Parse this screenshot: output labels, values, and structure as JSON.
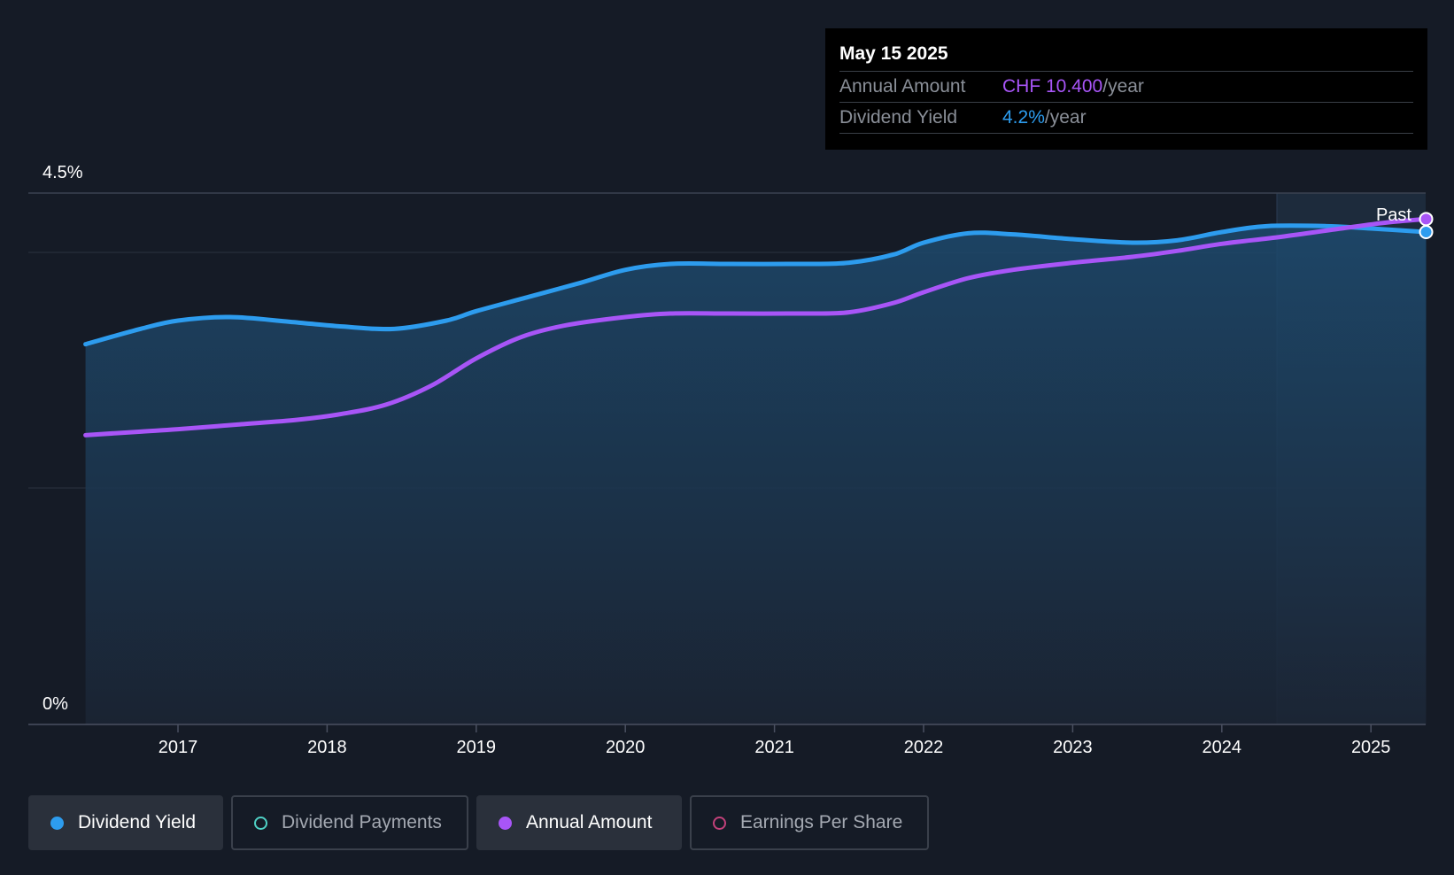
{
  "chart_data": {
    "type": "line",
    "x_tick_labels": [
      "2017",
      "2018",
      "2019",
      "2020",
      "2021",
      "2022",
      "2023",
      "2024",
      "2025"
    ],
    "y_tick_labels": [
      "4.5%",
      "0%"
    ],
    "ylim": [
      0,
      4.5
    ],
    "past_label": "Past",
    "series": [
      {
        "name": "Dividend Yield",
        "color": "#2d9cee",
        "points": [
          [
            2016.38,
            3.22
          ],
          [
            2016.75,
            3.35
          ],
          [
            2017.0,
            3.42
          ],
          [
            2017.35,
            3.45
          ],
          [
            2017.75,
            3.41
          ],
          [
            2018.1,
            3.37
          ],
          [
            2018.45,
            3.35
          ],
          [
            2018.8,
            3.42
          ],
          [
            2019.0,
            3.5
          ],
          [
            2019.35,
            3.62
          ],
          [
            2019.7,
            3.74
          ],
          [
            2020.0,
            3.85
          ],
          [
            2020.3,
            3.9
          ],
          [
            2020.7,
            3.9
          ],
          [
            2021.2,
            3.9
          ],
          [
            2021.5,
            3.91
          ],
          [
            2021.8,
            3.98
          ],
          [
            2022.0,
            4.08
          ],
          [
            2022.3,
            4.16
          ],
          [
            2022.6,
            4.15
          ],
          [
            2023.0,
            4.11
          ],
          [
            2023.4,
            4.08
          ],
          [
            2023.7,
            4.1
          ],
          [
            2024.0,
            4.17
          ],
          [
            2024.3,
            4.22
          ],
          [
            2024.7,
            4.22
          ],
          [
            2025.0,
            4.2
          ],
          [
            2025.37,
            4.17
          ]
        ]
      },
      {
        "name": "Annual Amount",
        "color": "#a855f7",
        "points": [
          [
            2016.38,
            2.45
          ],
          [
            2016.75,
            2.48
          ],
          [
            2017.0,
            2.5
          ],
          [
            2017.4,
            2.54
          ],
          [
            2017.8,
            2.58
          ],
          [
            2018.1,
            2.63
          ],
          [
            2018.4,
            2.71
          ],
          [
            2018.7,
            2.87
          ],
          [
            2019.0,
            3.1
          ],
          [
            2019.3,
            3.28
          ],
          [
            2019.6,
            3.38
          ],
          [
            2020.0,
            3.45
          ],
          [
            2020.3,
            3.48
          ],
          [
            2020.7,
            3.48
          ],
          [
            2021.2,
            3.48
          ],
          [
            2021.5,
            3.49
          ],
          [
            2021.8,
            3.57
          ],
          [
            2022.0,
            3.66
          ],
          [
            2022.3,
            3.78
          ],
          [
            2022.6,
            3.85
          ],
          [
            2023.0,
            3.91
          ],
          [
            2023.4,
            3.96
          ],
          [
            2023.7,
            4.01
          ],
          [
            2024.0,
            4.07
          ],
          [
            2024.4,
            4.13
          ],
          [
            2024.8,
            4.2
          ],
          [
            2025.1,
            4.25
          ],
          [
            2025.37,
            4.28
          ]
        ]
      }
    ]
  },
  "tooltip": {
    "date": "May 15 2025",
    "annual_label": "Annual Amount",
    "annual_value": "CHF 10.400",
    "annual_unit": "/year",
    "yield_label": "Dividend Yield",
    "yield_value": "4.2%",
    "yield_unit": "/year"
  },
  "legend": {
    "items": [
      {
        "label": "Dividend Yield",
        "color": "#2d9cee",
        "state": "active"
      },
      {
        "label": "Dividend Payments",
        "color": "#4fd1c5",
        "state": "inactive"
      },
      {
        "label": "Annual Amount",
        "color": "#a855f7",
        "state": "active"
      },
      {
        "label": "Earnings Per Share",
        "color": "#c2417a",
        "state": "inactive"
      }
    ]
  }
}
